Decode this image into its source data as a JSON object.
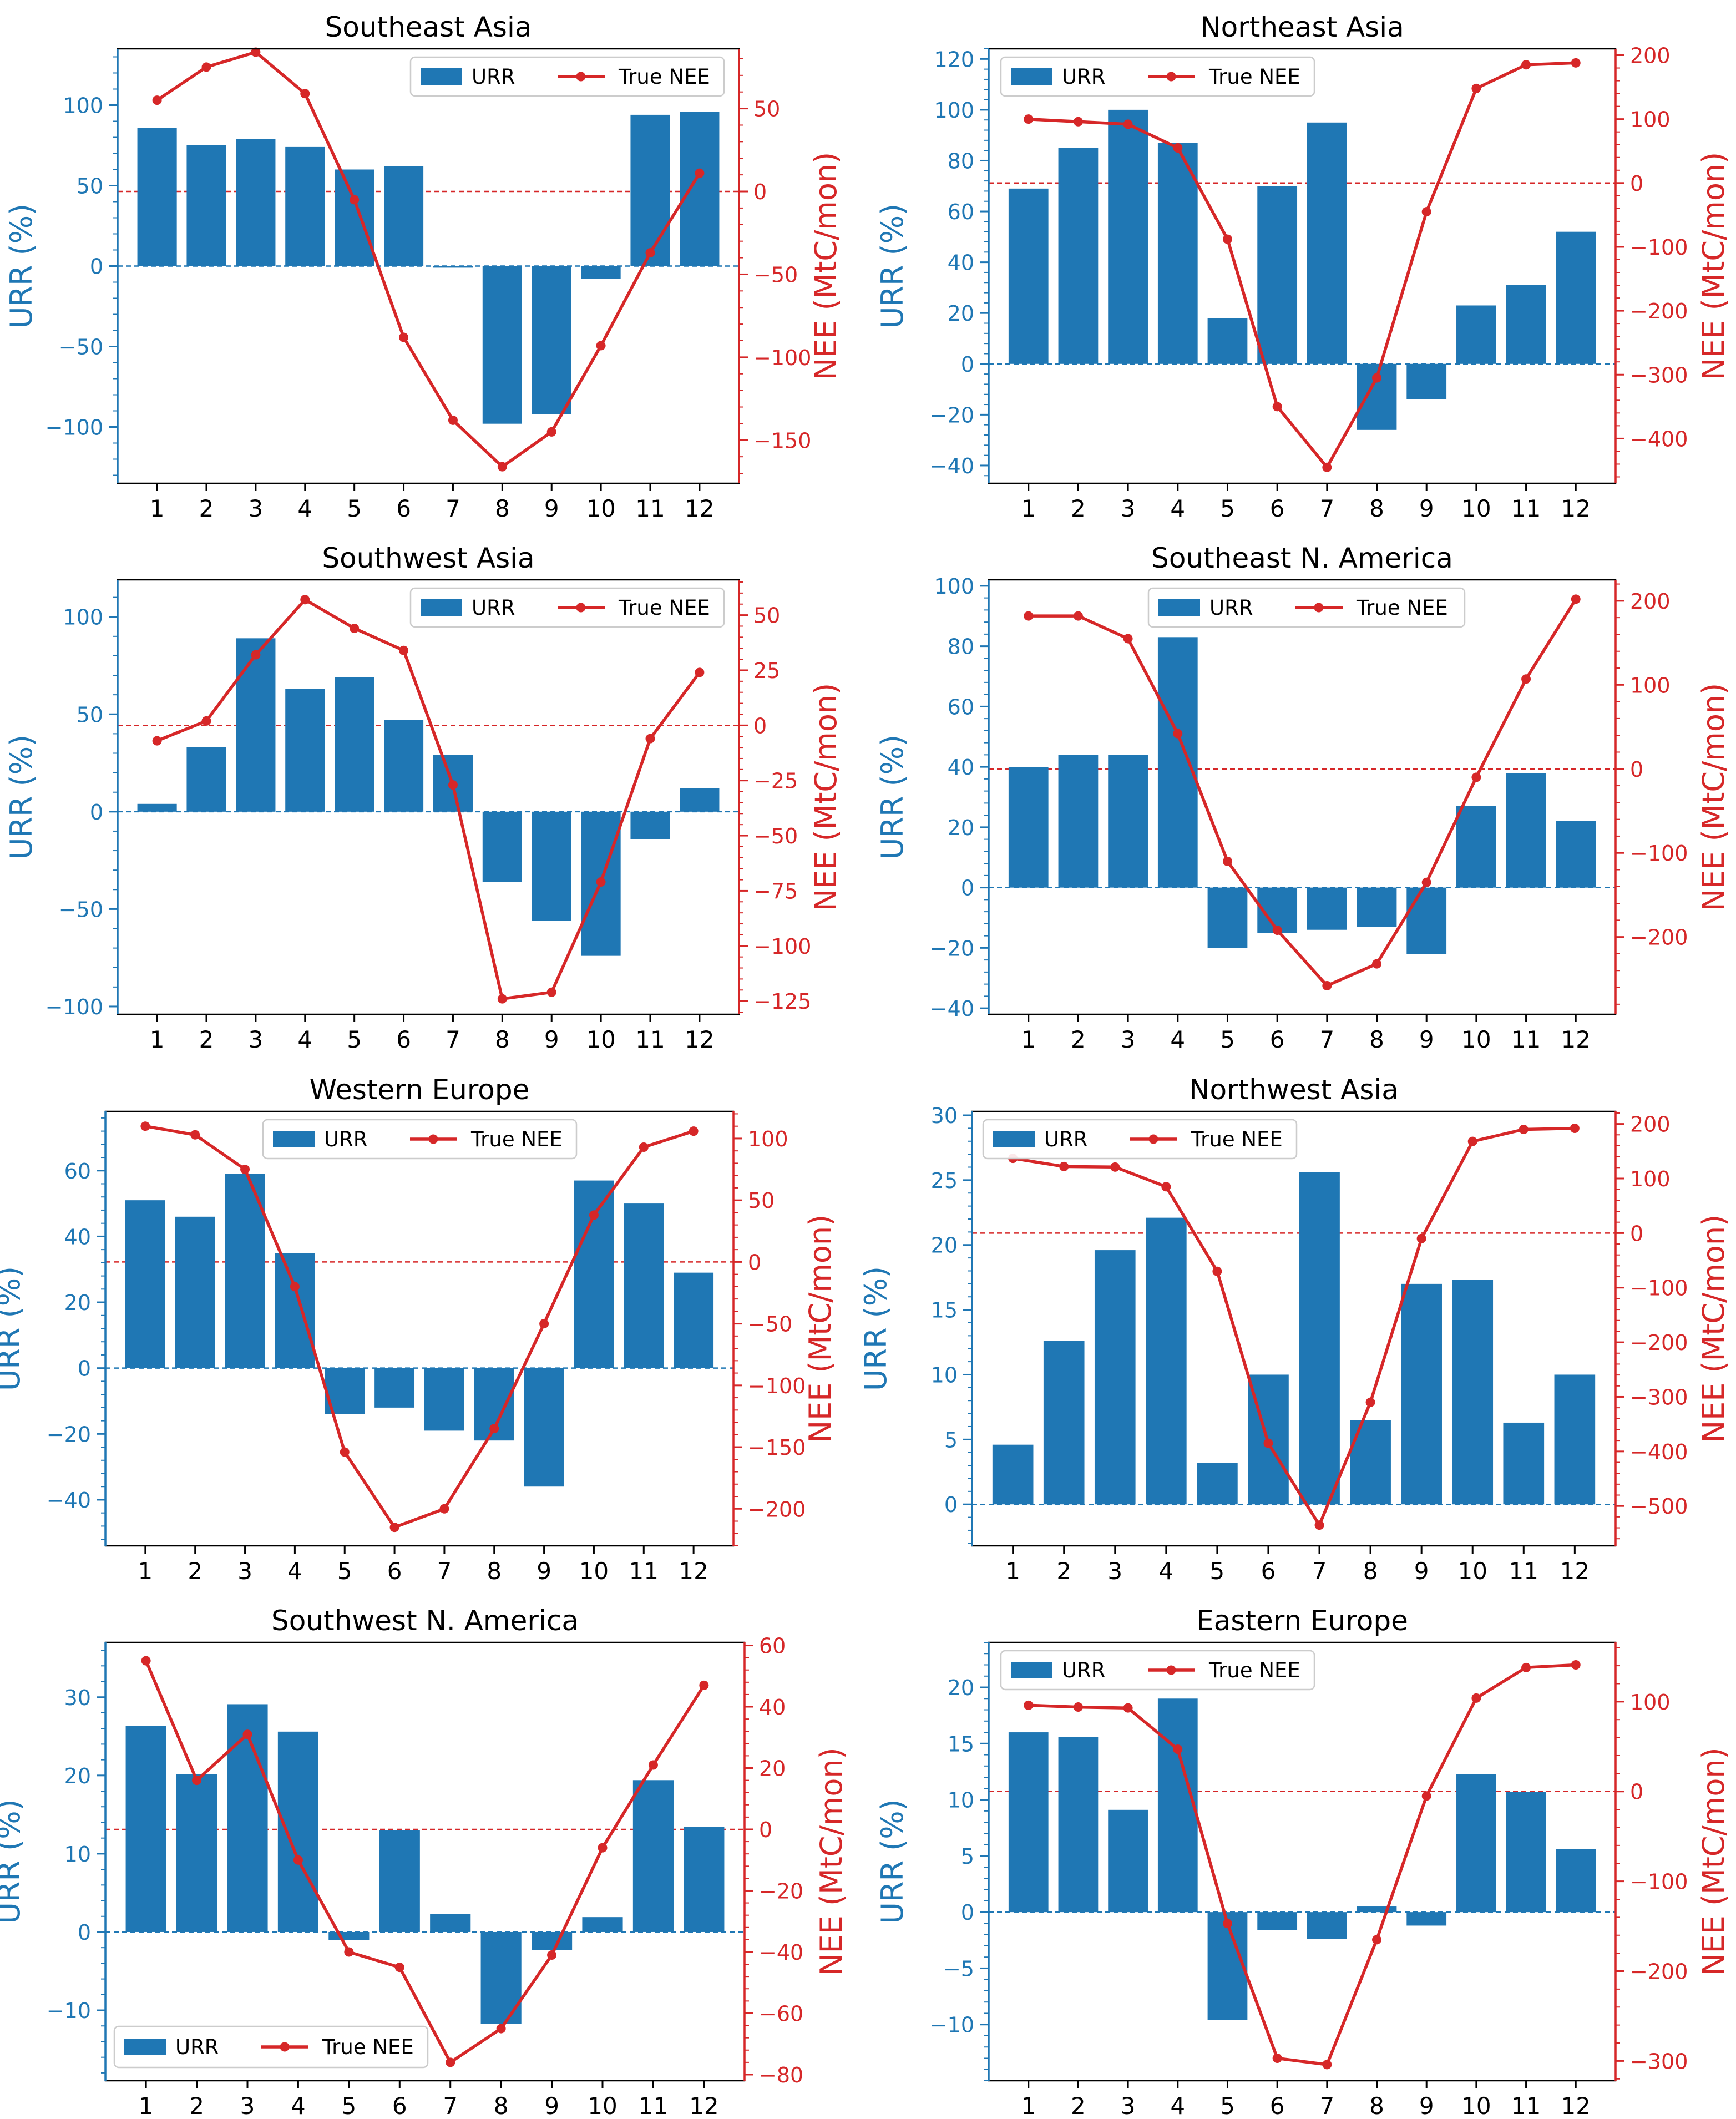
{
  "figure": {
    "colors": {
      "bar": "#1f77b4",
      "line": "#d62728",
      "axis_left": "#1f77b4",
      "axis_right": "#d62728",
      "frame": "#000000"
    }
  },
  "chart_data": [
    {
      "type": "bar+line",
      "title": "Southeast Asia",
      "categories": [
        "1",
        "2",
        "3",
        "4",
        "5",
        "6",
        "7",
        "8",
        "9",
        "10",
        "11",
        "12"
      ],
      "xlabel": "",
      "ylabel": "URR (%)",
      "y2label": "NEE (MtC/mon)",
      "ylim": [
        -135,
        135
      ],
      "y2lim": [
        -176,
        86
      ],
      "yticks": [
        -100,
        -50,
        0,
        50,
        100
      ],
      "y2ticks": [
        -150,
        -100,
        -50,
        0,
        50
      ],
      "series": [
        {
          "name": "URR",
          "kind": "bar",
          "axis": "left",
          "values": [
            86,
            75,
            79,
            74,
            60,
            62,
            -1,
            -98,
            -92,
            -8,
            94,
            96
          ]
        },
        {
          "name": "True NEE",
          "kind": "line",
          "axis": "right",
          "values": [
            55,
            75,
            84,
            59,
            -5,
            -88,
            -138,
            -166,
            -145,
            -93,
            -37,
            11
          ]
        }
      ],
      "legend": {
        "placement": "top-right",
        "entries": [
          "URR",
          "True NEE"
        ]
      },
      "reference_lines": [
        "URR = 0",
        "NEE = 0"
      ]
    },
    {
      "type": "bar+line",
      "title": "Northeast Asia",
      "categories": [
        "1",
        "2",
        "3",
        "4",
        "5",
        "6",
        "7",
        "8",
        "9",
        "10",
        "11",
        "12"
      ],
      "xlabel": "",
      "ylabel": "URR (%)",
      "y2label": "NEE (MtC/mon)",
      "ylim": [
        -47,
        124
      ],
      "y2lim": [
        -470,
        210
      ],
      "yticks": [
        -40,
        -20,
        0,
        20,
        40,
        60,
        80,
        100,
        120
      ],
      "y2ticks": [
        -400,
        -300,
        -200,
        -100,
        0,
        100,
        200
      ],
      "series": [
        {
          "name": "URR",
          "kind": "bar",
          "axis": "left",
          "values": [
            69,
            85,
            100,
            87,
            18,
            70,
            95,
            -26,
            -14,
            23,
            31,
            52
          ]
        },
        {
          "name": "True NEE",
          "kind": "line",
          "axis": "right",
          "values": [
            100,
            96,
            92,
            55,
            -88,
            -350,
            -445,
            -305,
            -45,
            148,
            185,
            188
          ]
        }
      ],
      "legend": {
        "placement": "top-left",
        "entries": [
          "URR",
          "True NEE"
        ]
      },
      "reference_lines": [
        "URR = 0",
        "NEE = 0"
      ]
    },
    {
      "type": "bar+line",
      "title": "Southwest Asia",
      "categories": [
        "1",
        "2",
        "3",
        "4",
        "5",
        "6",
        "7",
        "8",
        "9",
        "10",
        "11",
        "12"
      ],
      "xlabel": "",
      "ylabel": "URR (%)",
      "y2label": "NEE (MtC/mon)",
      "ylim": [
        -104,
        119
      ],
      "y2lim": [
        -131,
        66
      ],
      "yticks": [
        -100,
        -50,
        0,
        50,
        100
      ],
      "y2ticks": [
        -125,
        -100,
        -75,
        -50,
        -25,
        0,
        25,
        50
      ],
      "series": [
        {
          "name": "URR",
          "kind": "bar",
          "axis": "left",
          "values": [
            4,
            33,
            89,
            63,
            69,
            47,
            29,
            -36,
            -56,
            -74,
            -14,
            12
          ]
        },
        {
          "name": "True NEE",
          "kind": "line",
          "axis": "right",
          "values": [
            -7,
            2,
            32,
            57,
            44,
            34,
            -27,
            -124,
            -121,
            -71,
            -6,
            24
          ]
        }
      ],
      "legend": {
        "placement": "top-right",
        "entries": [
          "URR",
          "True NEE"
        ]
      },
      "reference_lines": [
        "URR = 0",
        "NEE = 0"
      ]
    },
    {
      "type": "bar+line",
      "title": "Southeast N. America",
      "categories": [
        "1",
        "2",
        "3",
        "4",
        "5",
        "6",
        "7",
        "8",
        "9",
        "10",
        "11",
        "12"
      ],
      "xlabel": "",
      "ylabel": "URR (%)",
      "y2label": "NEE (MtC/mon)",
      "ylim": [
        -42,
        102
      ],
      "y2lim": [
        -292,
        225
      ],
      "yticks": [
        -40,
        -20,
        0,
        20,
        40,
        60,
        80,
        100
      ],
      "y2ticks": [
        -200,
        -100,
        0,
        100,
        200
      ],
      "series": [
        {
          "name": "URR",
          "kind": "bar",
          "axis": "left",
          "values": [
            40,
            44,
            44,
            83,
            -20,
            -15,
            -14,
            -13,
            -22,
            27,
            38,
            22
          ]
        },
        {
          "name": "True NEE",
          "kind": "line",
          "axis": "right",
          "values": [
            182,
            182,
            155,
            42,
            -110,
            -192,
            -258,
            -232,
            -135,
            -10,
            107,
            202
          ]
        }
      ],
      "legend": {
        "placement": "top-center",
        "entries": [
          "URR",
          "True NEE"
        ]
      },
      "reference_lines": [
        "URR = 0",
        "NEE = 0"
      ]
    },
    {
      "type": "bar+line",
      "title": "Western Europe",
      "categories": [
        "1",
        "2",
        "3",
        "4",
        "5",
        "6",
        "7",
        "8",
        "9",
        "10",
        "11",
        "12"
      ],
      "xlabel": "",
      "ylabel": "URR (%)",
      "y2label": "NEE (MtC/mon)",
      "ylim": [
        -54,
        78
      ],
      "y2lim": [
        -230,
        122
      ],
      "yticks": [
        -40,
        -20,
        0,
        20,
        40,
        60
      ],
      "y2ticks": [
        -200,
        -150,
        -100,
        -50,
        0,
        50,
        100
      ],
      "series": [
        {
          "name": "URR",
          "kind": "bar",
          "axis": "left",
          "values": [
            51,
            46,
            59,
            35,
            -14,
            -12,
            -19,
            -22,
            -36,
            57,
            50,
            29
          ]
        },
        {
          "name": "True NEE",
          "kind": "line",
          "axis": "right",
          "values": [
            110,
            103,
            75,
            -20,
            -154,
            -215,
            -200,
            -135,
            -50,
            38,
            93,
            106
          ]
        }
      ],
      "legend": {
        "placement": "top-center",
        "entries": [
          "URR",
          "True NEE"
        ]
      },
      "reference_lines": [
        "URR = 0",
        "NEE = 0"
      ]
    },
    {
      "type": "bar+line",
      "title": "Northwest Asia",
      "categories": [
        "1",
        "2",
        "3",
        "4",
        "5",
        "6",
        "7",
        "8",
        "9",
        "10",
        "11",
        "12"
      ],
      "xlabel": "",
      "ylabel": "URR (%)",
      "y2label": "NEE (MtC/mon)",
      "ylim": [
        -3.2,
        30.3
      ],
      "y2lim": [
        -573,
        223
      ],
      "yticks": [
        0,
        5,
        10,
        15,
        20,
        25,
        30
      ],
      "y2ticks": [
        -500,
        -400,
        -300,
        -200,
        -100,
        0,
        100,
        200
      ],
      "series": [
        {
          "name": "URR",
          "kind": "bar",
          "axis": "left",
          "values": [
            4.6,
            12.6,
            19.6,
            22.1,
            3.2,
            10.0,
            25.6,
            6.5,
            17.0,
            17.3,
            6.3,
            10.0
          ]
        },
        {
          "name": "True NEE",
          "kind": "line",
          "axis": "right",
          "values": [
            137,
            122,
            121,
            85,
            -70,
            -385,
            -535,
            -310,
            -10,
            168,
            190,
            192
          ]
        }
      ],
      "legend": {
        "placement": "top-left",
        "entries": [
          "URR",
          "True NEE"
        ]
      },
      "reference_lines": [
        "URR = 0",
        "NEE = 0"
      ]
    },
    {
      "type": "bar+line",
      "title": "Southwest N. America",
      "categories": [
        "1",
        "2",
        "3",
        "4",
        "5",
        "6",
        "7",
        "8",
        "9",
        "10",
        "11",
        "12"
      ],
      "xlabel": "",
      "ylabel": "URR (%)",
      "y2label": "NEE (MtC/mon)",
      "ylim": [
        -19,
        37
      ],
      "y2lim": [
        -82,
        61
      ],
      "yticks": [
        -10,
        0,
        10,
        20,
        30
      ],
      "y2ticks": [
        -80,
        -60,
        -40,
        -20,
        0,
        20,
        40,
        60
      ],
      "series": [
        {
          "name": "URR",
          "kind": "bar",
          "axis": "left",
          "values": [
            26.3,
            20.2,
            29.1,
            25.6,
            -1.0,
            13.0,
            2.3,
            -11.7,
            -2.3,
            1.9,
            19.4,
            13.4
          ]
        },
        {
          "name": "True NEE",
          "kind": "line",
          "axis": "right",
          "values": [
            55,
            16,
            31,
            -10,
            -40,
            -45,
            -76,
            -65,
            -41,
            -6,
            21,
            47
          ]
        }
      ],
      "legend": {
        "placement": "bottom-left",
        "entries": [
          "URR",
          "True NEE"
        ]
      },
      "reference_lines": [
        "URR = 0",
        "NEE = 0"
      ]
    },
    {
      "type": "bar+line",
      "title": "Eastern Europe",
      "categories": [
        "1",
        "2",
        "3",
        "4",
        "5",
        "6",
        "7",
        "8",
        "9",
        "10",
        "11",
        "12"
      ],
      "xlabel": "",
      "ylabel": "URR (%)",
      "y2label": "NEE (MtC/mon)",
      "ylim": [
        -15,
        24
      ],
      "y2lim": [
        -322,
        166
      ],
      "yticks": [
        -10,
        -5,
        0,
        5,
        10,
        15,
        20
      ],
      "y2ticks": [
        -300,
        -200,
        -100,
        0,
        100
      ],
      "series": [
        {
          "name": "URR",
          "kind": "bar",
          "axis": "left",
          "values": [
            16.0,
            15.6,
            9.1,
            19.0,
            -9.6,
            -1.6,
            -2.4,
            0.5,
            -1.2,
            12.3,
            10.7,
            5.6
          ]
        },
        {
          "name": "True NEE",
          "kind": "line",
          "axis": "right",
          "values": [
            96,
            94,
            93,
            47,
            -147,
            -297,
            -304,
            -165,
            -5,
            104,
            138,
            141
          ]
        }
      ],
      "legend": {
        "placement": "top-left",
        "entries": [
          "URR",
          "True NEE"
        ]
      },
      "reference_lines": [
        "URR = 0",
        "NEE = 0"
      ]
    }
  ]
}
